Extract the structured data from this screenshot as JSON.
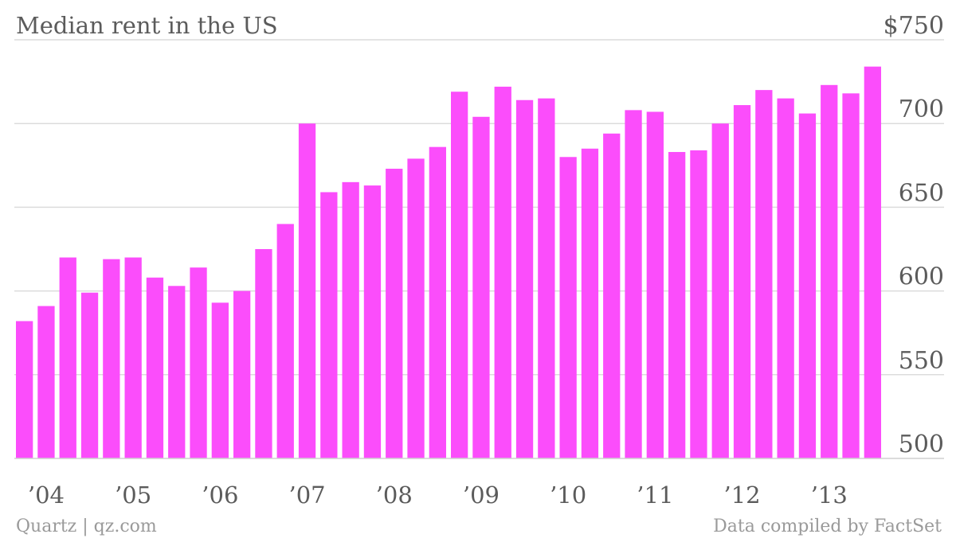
{
  "chart_data": {
    "type": "bar",
    "title": "Median rent in the US",
    "xlabel": "",
    "ylabel": "",
    "ylim": [
      500,
      750
    ],
    "y_ticks": [
      500,
      550,
      600,
      650,
      700,
      750
    ],
    "y_tick_labels": [
      "500",
      "550",
      "600",
      "650",
      "700",
      "$750"
    ],
    "grid": true,
    "x_tick_labels": [
      "’04",
      "’05",
      "’06",
      "’07",
      "’08",
      "’09",
      "’10",
      "’11",
      "’12",
      "’13"
    ],
    "x_tick_bar_index": [
      1,
      5,
      9,
      13,
      17,
      21,
      25,
      29,
      33,
      37
    ],
    "values": [
      582,
      591,
      620,
      599,
      619,
      620,
      608,
      603,
      614,
      593,
      600,
      625,
      640,
      700,
      659,
      665,
      663,
      673,
      679,
      686,
      719,
      704,
      722,
      714,
      715,
      680,
      685,
      694,
      708,
      707,
      683,
      684,
      700,
      711,
      720,
      715,
      706,
      723,
      718,
      734
    ],
    "bar_color": "#fb4dfb",
    "source_left": "Quartz | qz.com",
    "source_right": "Data compiled by FactSet"
  }
}
